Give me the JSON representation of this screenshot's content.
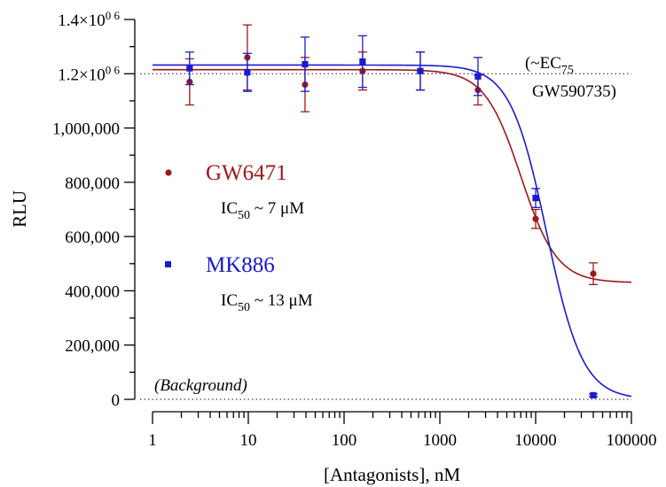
{
  "chart_data": {
    "type": "scatter",
    "xlabel": "[Antagonists], nM",
    "ylabel": "RLU",
    "x_scale": "log",
    "xlim": [
      1,
      100000
    ],
    "ylim": [
      0,
      1400000
    ],
    "grid": false,
    "x_ticks": [
      1,
      10,
      100,
      1000,
      10000,
      100000
    ],
    "x_tick_labels": [
      "1",
      "10",
      "100",
      "1000",
      "10000",
      "100000"
    ],
    "y_ticks": [
      0,
      200000,
      400000,
      600000,
      800000,
      1000000,
      1200000,
      1400000
    ],
    "y_tick_labels": [
      {
        "base": "0",
        "sup": ""
      },
      {
        "base": "200,000",
        "sup": ""
      },
      {
        "base": "400,000",
        "sup": ""
      },
      {
        "base": "600,000",
        "sup": ""
      },
      {
        "base": "800,000",
        "sup": ""
      },
      {
        "base": "1,000,000",
        "sup": ""
      },
      {
        "base": "1.2×10",
        "sup": "0 6"
      },
      {
        "base": "1.4×10",
        "sup": "0 6"
      }
    ],
    "series": [
      {
        "name": "GW6471",
        "color": "#a01818",
        "marker": "circle",
        "x": [
          2.44,
          9.77,
          39.1,
          156,
          625,
          2500,
          10000,
          40000
        ],
        "y": [
          1170000,
          1260000,
          1160000,
          1210000,
          1210000,
          1140000,
          665000,
          463000
        ],
        "err": [
          85000,
          120000,
          100000,
          70000,
          70000,
          55000,
          35000,
          40000
        ],
        "fit": {
          "top": 1215000,
          "bottom": 430000,
          "ic50": 7000,
          "hill": 2.3
        },
        "ic50_label": {
          "base": "IC",
          "sub": "50",
          "rest": " ~ 7 μM"
        }
      },
      {
        "name": "MK886",
        "color": "#1a1ad0",
        "marker": "square",
        "x": [
          2.44,
          9.77,
          39.1,
          156,
          625,
          2500,
          10000,
          40000
        ],
        "y": [
          1220000,
          1205000,
          1235000,
          1245000,
          1210000,
          1190000,
          742000,
          15000
        ],
        "err": [
          60000,
          70000,
          100000,
          95000,
          70000,
          70000,
          35000,
          5000
        ],
        "fit": {
          "top": 1232000,
          "bottom": 0,
          "ic50": 13000,
          "hill": 2.3
        },
        "ic50_label": {
          "base": "IC",
          "sub": "50",
          "rest": " ~ 13 μM"
        }
      }
    ],
    "reference_lines": [
      {
        "y": 1200000,
        "label_line1": "(~EC",
        "label_line1_sub": "75",
        "label_line2": "GW590735)"
      },
      {
        "y": 0,
        "label": "(Background)"
      }
    ]
  }
}
